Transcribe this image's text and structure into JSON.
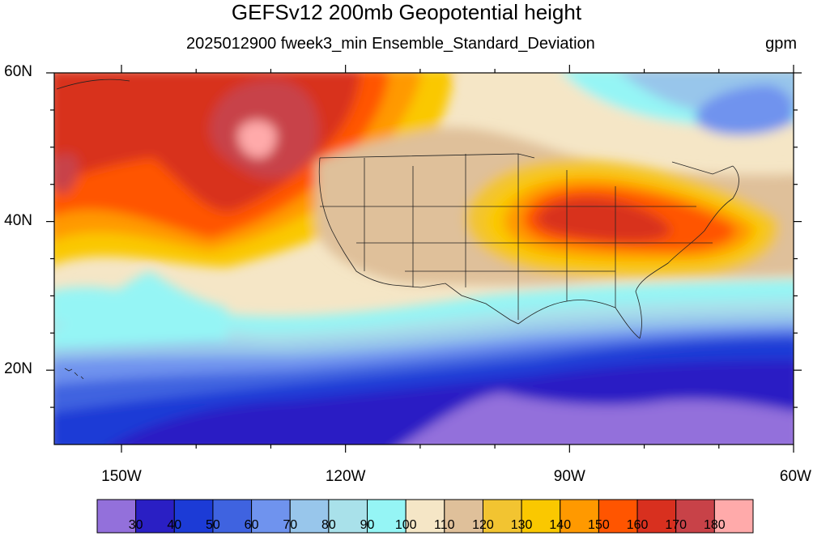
{
  "title": "GEFSv12 200mb Geopotential height",
  "subtitle": "2025012900 fweek3_min Ensemble_Standard_Deviation",
  "units": "gpm",
  "lat_labels": [
    {
      "lat": 60,
      "text": "60N"
    },
    {
      "lat": 40,
      "text": "40N"
    },
    {
      "lat": 20,
      "text": "20N"
    }
  ],
  "lon_labels": [
    {
      "lon": -150,
      "text": "150W"
    },
    {
      "lon": -120,
      "text": "120W"
    },
    {
      "lon": -90,
      "text": "90W"
    },
    {
      "lon": -60,
      "text": "60W"
    }
  ],
  "colorbar": {
    "colors": [
      "#9370db",
      "#2a1fc4",
      "#1c3bd6",
      "#3f63e0",
      "#6f93ee",
      "#98c6eb",
      "#a9e1ea",
      "#95f5f5",
      "#f5e6c6",
      "#dfc09a",
      "#f2c431",
      "#fac800",
      "#ff9900",
      "#ff5500",
      "#d8301f",
      "#c84248",
      "#ffaaaa"
    ],
    "labels": [
      "30",
      "40",
      "50",
      "60",
      "70",
      "80",
      "90",
      "100",
      "110",
      "120",
      "130",
      "140",
      "150",
      "160",
      "170",
      "180"
    ]
  },
  "map_extent": {
    "lon_min": -159,
    "lon_max": -60,
    "lat_min": 10,
    "lat_max": 60
  }
}
